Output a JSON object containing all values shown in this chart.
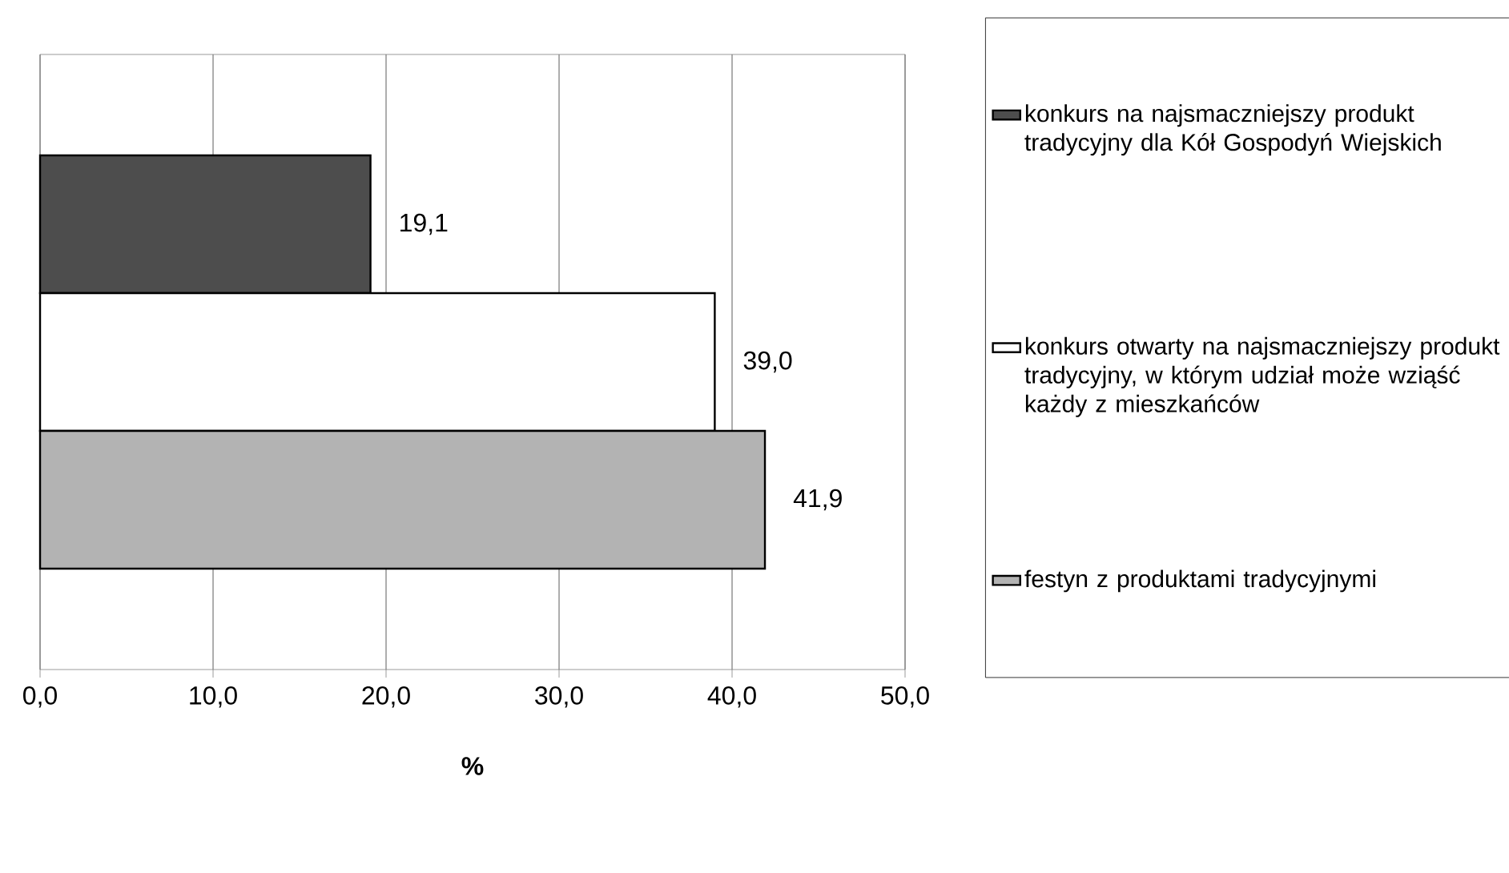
{
  "chart_data": {
    "type": "bar",
    "orientation": "horizontal",
    "xlabel": "%",
    "categories": [
      null
    ],
    "series": [
      {
        "name": "konkurs na najsmaczniejszy produkt tradycyjny dla Kół Gospodyń Wiejskich",
        "color": "#4d4d4d",
        "values": [
          19.1
        ],
        "value_labels": [
          "19,1"
        ]
      },
      {
        "name": "konkurs otwarty na najsmaczniejszy produkt tradycyjny, w którym udział może wziąść każdy z mieszkańców",
        "color": "#ffffff",
        "values": [
          39.0
        ],
        "value_labels": [
          "39,0"
        ]
      },
      {
        "name": "festyn z produktami tradycyjnymi",
        "color": "#b3b3b3",
        "values": [
          41.9
        ],
        "value_labels": [
          "41,9"
        ]
      }
    ],
    "xlim": [
      0,
      50
    ],
    "xticks": [
      {
        "value": 0,
        "label": "0,0"
      },
      {
        "value": 10,
        "label": "10,0"
      },
      {
        "value": 20,
        "label": "20,0"
      },
      {
        "value": 30,
        "label": "30,0"
      },
      {
        "value": 40,
        "label": "40,0"
      },
      {
        "value": 50,
        "label": "50,0"
      }
    ],
    "grid": "x",
    "legend": "right"
  }
}
